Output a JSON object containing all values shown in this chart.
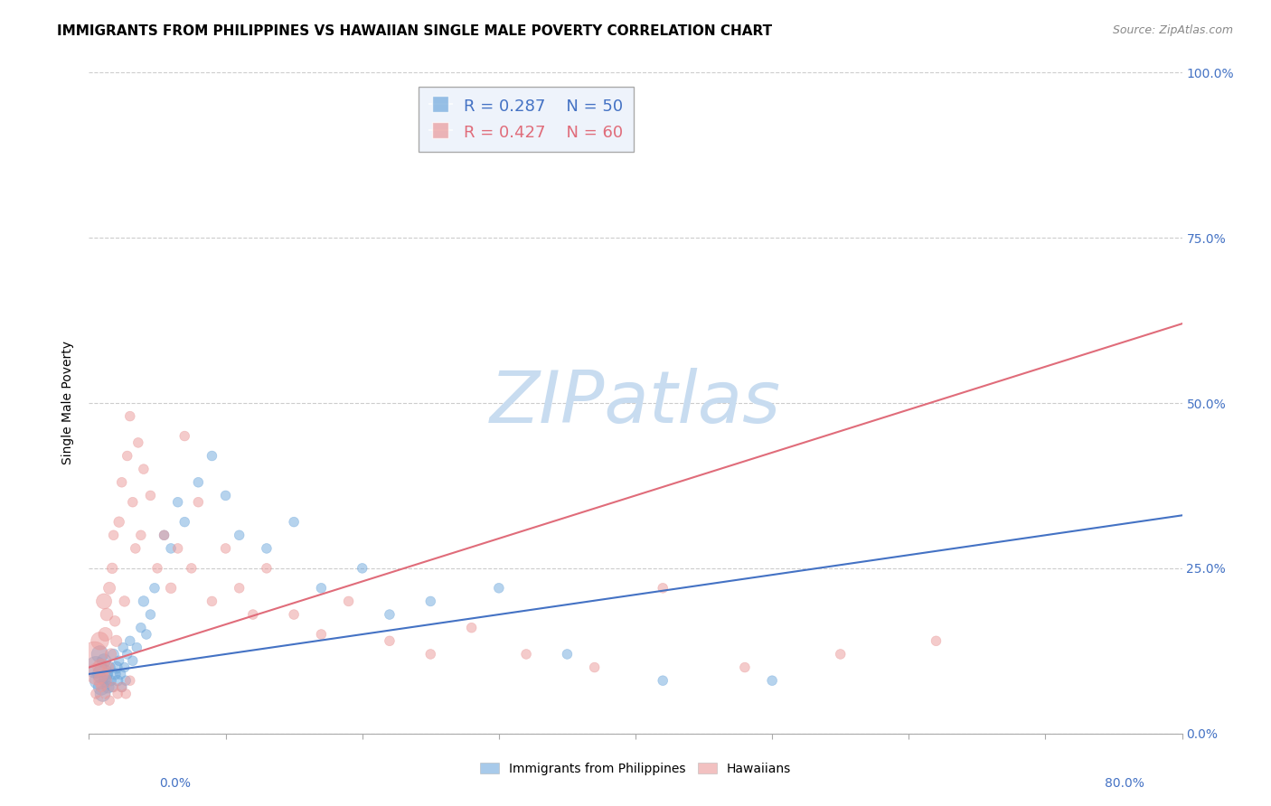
{
  "title": "IMMIGRANTS FROM PHILIPPINES VS HAWAIIAN SINGLE MALE POVERTY CORRELATION CHART",
  "source": "Source: ZipAtlas.com",
  "xlabel_legend1": "Immigrants from Philippines",
  "xlabel_legend2": "Hawaiians",
  "ylabel": "Single Male Poverty",
  "right_yticklabels": [
    "0.0%",
    "25.0%",
    "50.0%",
    "75.0%",
    "100.0%"
  ],
  "right_ytick_vals": [
    0.0,
    0.25,
    0.5,
    0.75,
    1.0
  ],
  "xlim": [
    0.0,
    0.8
  ],
  "ylim": [
    0.0,
    1.0
  ],
  "blue_R": 0.287,
  "blue_N": 50,
  "pink_R": 0.427,
  "pink_N": 60,
  "blue_color": "#6fa8dc",
  "pink_color": "#ea9999",
  "blue_line_color": "#4472c4",
  "pink_line_color": "#e06c7a",
  "legend_box_color": "#eef3fb",
  "blue_scatter_x": [
    0.005,
    0.007,
    0.008,
    0.009,
    0.01,
    0.01,
    0.011,
    0.012,
    0.013,
    0.014,
    0.015,
    0.016,
    0.017,
    0.018,
    0.019,
    0.02,
    0.021,
    0.022,
    0.023,
    0.024,
    0.025,
    0.026,
    0.027,
    0.028,
    0.03,
    0.032,
    0.035,
    0.038,
    0.04,
    0.042,
    0.045,
    0.048,
    0.055,
    0.06,
    0.065,
    0.07,
    0.08,
    0.09,
    0.1,
    0.11,
    0.13,
    0.15,
    0.17,
    0.2,
    0.22,
    0.25,
    0.3,
    0.35,
    0.42,
    0.5
  ],
  "blue_scatter_y": [
    0.1,
    0.08,
    0.12,
    0.07,
    0.09,
    0.06,
    0.11,
    0.08,
    0.09,
    0.07,
    0.1,
    0.08,
    0.07,
    0.12,
    0.09,
    0.1,
    0.08,
    0.11,
    0.09,
    0.07,
    0.13,
    0.1,
    0.08,
    0.12,
    0.14,
    0.11,
    0.13,
    0.16,
    0.2,
    0.15,
    0.18,
    0.22,
    0.3,
    0.28,
    0.35,
    0.32,
    0.38,
    0.42,
    0.36,
    0.3,
    0.28,
    0.32,
    0.22,
    0.25,
    0.18,
    0.2,
    0.22,
    0.12,
    0.08,
    0.08
  ],
  "blue_scatter_sizes": [
    300,
    200,
    180,
    160,
    250,
    150,
    120,
    100,
    80,
    90,
    80,
    70,
    60,
    70,
    80,
    90,
    70,
    60,
    70,
    60,
    60,
    60,
    60,
    60,
    60,
    60,
    60,
    60,
    70,
    60,
    60,
    60,
    60,
    60,
    60,
    60,
    60,
    60,
    60,
    60,
    60,
    60,
    60,
    60,
    60,
    60,
    60,
    60,
    60,
    60
  ],
  "pink_scatter_x": [
    0.004,
    0.006,
    0.008,
    0.009,
    0.01,
    0.011,
    0.012,
    0.013,
    0.014,
    0.015,
    0.016,
    0.017,
    0.018,
    0.019,
    0.02,
    0.022,
    0.024,
    0.026,
    0.028,
    0.03,
    0.032,
    0.034,
    0.036,
    0.038,
    0.04,
    0.045,
    0.05,
    0.055,
    0.06,
    0.065,
    0.07,
    0.075,
    0.08,
    0.09,
    0.1,
    0.11,
    0.12,
    0.13,
    0.15,
    0.17,
    0.19,
    0.22,
    0.25,
    0.28,
    0.32,
    0.37,
    0.42,
    0.48,
    0.55,
    0.62,
    0.005,
    0.007,
    0.009,
    0.012,
    0.015,
    0.018,
    0.021,
    0.024,
    0.027,
    0.03
  ],
  "pink_scatter_y": [
    0.12,
    0.09,
    0.14,
    0.1,
    0.08,
    0.2,
    0.15,
    0.18,
    0.1,
    0.22,
    0.12,
    0.25,
    0.3,
    0.17,
    0.14,
    0.32,
    0.38,
    0.2,
    0.42,
    0.48,
    0.35,
    0.28,
    0.44,
    0.3,
    0.4,
    0.36,
    0.25,
    0.3,
    0.22,
    0.28,
    0.45,
    0.25,
    0.35,
    0.2,
    0.28,
    0.22,
    0.18,
    0.25,
    0.18,
    0.15,
    0.2,
    0.14,
    0.12,
    0.16,
    0.12,
    0.1,
    0.22,
    0.1,
    0.12,
    0.14,
    0.06,
    0.05,
    0.07,
    0.06,
    0.05,
    0.07,
    0.06,
    0.07,
    0.06,
    0.08
  ],
  "pink_scatter_sizes": [
    400,
    300,
    200,
    180,
    200,
    150,
    120,
    100,
    80,
    90,
    80,
    70,
    60,
    70,
    80,
    70,
    60,
    70,
    60,
    60,
    60,
    60,
    60,
    60,
    60,
    60,
    60,
    60,
    70,
    60,
    60,
    60,
    60,
    60,
    60,
    60,
    60,
    60,
    60,
    60,
    60,
    60,
    60,
    60,
    60,
    60,
    60,
    60,
    60,
    60,
    60,
    60,
    60,
    60,
    60,
    60,
    60,
    60,
    60,
    60
  ],
  "blue_trend_start_x": 0.0,
  "blue_trend_end_x": 0.8,
  "blue_trend_start_y": 0.09,
  "blue_trend_end_y": 0.33,
  "pink_trend_start_x": 0.0,
  "pink_trend_end_x": 0.8,
  "pink_trend_start_y": 0.1,
  "pink_trend_end_y": 0.62,
  "watermark_zip": "ZIP",
  "watermark_atlas": "atlas",
  "watermark_color": "#c8dcf0",
  "title_fontsize": 11,
  "axis_label_fontsize": 10,
  "tick_fontsize": 10,
  "right_tick_color": "#4472c4",
  "x_edge_label_color": "#4472c4",
  "background_color": "#ffffff"
}
